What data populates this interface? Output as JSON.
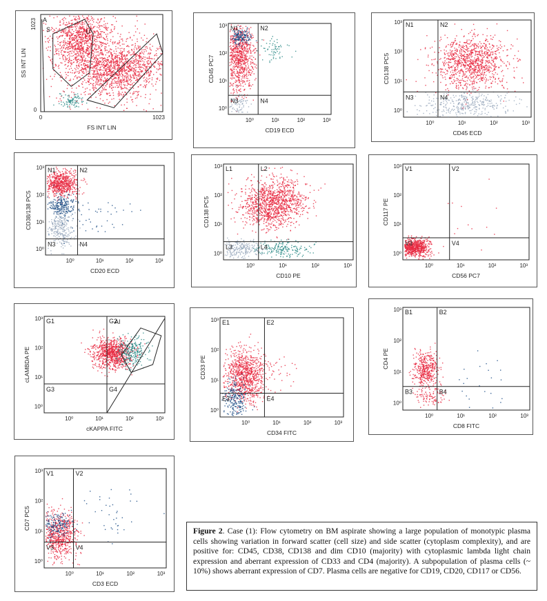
{
  "figure": {
    "caption_label": "Figure 2",
    "caption_text": ". Case (1): Flow cytometry on BM aspirate showing a large population of monotypic plasma cells showing variation in forward scatter (cell size) and side scatter (cytoplasm complexity), and are positive for: CD45, CD38, CD138 and dim CD10 (majority) with cytoplasmic lambda light chain expression and aberrant expression of CD33 and CD4 (majority).  A subpopulation of plasma cells (~ 10%) shows aberrant expression of CD7. Plasma cells are negative for CD19, CD20, CD117 or CD56."
  },
  "colors": {
    "plasma": "#e8283f",
    "gate_dark": "#1d4f86",
    "teal": "#2a8a86",
    "grey": "#9aa9bd",
    "axis": "#222"
  },
  "chart_data": [
    {
      "type": "scatter",
      "xlabel": "FS INT LIN",
      "ylabel": "SS INT LIN",
      "x_ticks": [
        "0",
        "1023"
      ],
      "y_ticks": [
        "1023",
        "0"
      ],
      "regions": [
        "A",
        "S",
        "U"
      ],
      "scale": "linear"
    },
    {
      "type": "scatter",
      "xlabel": "CD19 ECD",
      "ylabel": "CD45 PC7",
      "quadrants": [
        "N1",
        "N2",
        "N3",
        "N4"
      ],
      "x_ticks": [
        "10⁰",
        "10¹",
        "10²",
        "10³"
      ],
      "y_ticks": [
        "10³",
        "10²",
        "10¹",
        "10⁰"
      ],
      "scale": "log"
    },
    {
      "type": "scatter",
      "xlabel": "CD45 ECD",
      "ylabel": "CD138 PC5",
      "quadrants": [
        "N1",
        "N2",
        "N3",
        "N4"
      ],
      "x_ticks": [
        "10⁰",
        "10¹",
        "10²",
        "10³"
      ],
      "y_ticks": [
        "10³",
        "10²",
        "10¹",
        "10⁰"
      ],
      "scale": "log"
    },
    {
      "type": "scatter",
      "xlabel": "CD20 ECD",
      "ylabel": "CD38/138 PC5",
      "quadrants": [
        "N1",
        "N2",
        "N3",
        "N4"
      ],
      "x_ticks": [
        "10⁰",
        "10¹",
        "10²",
        "10³"
      ],
      "y_ticks": [
        "10³",
        "10²",
        "10¹",
        "10⁰"
      ],
      "scale": "log"
    },
    {
      "type": "scatter",
      "xlabel": "CD10 PE",
      "ylabel": "CD138 PC5",
      "quadrants": [
        "L1",
        "L2",
        "L3",
        "L4"
      ],
      "x_ticks": [
        "10⁰",
        "10¹",
        "10²",
        "10³"
      ],
      "y_ticks": [
        "10³",
        "10²",
        "10¹",
        "10⁰"
      ],
      "scale": "log"
    },
    {
      "type": "scatter",
      "xlabel": "CD56 PC7",
      "ylabel": "CD117 PE",
      "quadrants": [
        "V1",
        "V2",
        "V3",
        "V4"
      ],
      "x_ticks": [
        "10⁰",
        "10¹",
        "10²",
        "10³"
      ],
      "y_ticks": [
        "10³",
        "10²",
        "10¹",
        "10⁰"
      ],
      "scale": "log"
    },
    {
      "type": "scatter",
      "xlabel": "cKAPPA FITC",
      "ylabel": "cLAMBDA PE",
      "quadrants": [
        "G1",
        "G2",
        "G3",
        "G4"
      ],
      "gate": "AI",
      "x_ticks": [
        "10⁰",
        "10¹",
        "10²",
        "10³"
      ],
      "y_ticks": [
        "10³",
        "10²",
        "10¹",
        "10⁰"
      ],
      "scale": "log"
    },
    {
      "type": "scatter",
      "xlabel": "CD34 FITC",
      "ylabel": "CD33 PE",
      "quadrants": [
        "E1",
        "E2",
        "E3",
        "E4"
      ],
      "x_ticks": [
        "10⁰",
        "10¹",
        "10²",
        "10³"
      ],
      "y_ticks": [
        "10³",
        "10²",
        "10¹",
        "10⁰"
      ],
      "scale": "log"
    },
    {
      "type": "scatter",
      "xlabel": "CD8 FITC",
      "ylabel": "CD4 PE",
      "quadrants": [
        "B1",
        "B2",
        "B3",
        "B4"
      ],
      "x_ticks": [
        "10⁰",
        "10¹",
        "10²",
        "10³"
      ],
      "y_ticks": [
        "10³",
        "10²",
        "10¹",
        "10⁰"
      ],
      "scale": "log"
    },
    {
      "type": "scatter",
      "xlabel": "CD3 ECD",
      "ylabel": "CD7 PC5",
      "quadrants": [
        "V1",
        "V2",
        "V3",
        "V4"
      ],
      "x_ticks": [
        "10⁰",
        "10¹",
        "10²",
        "10³"
      ],
      "y_ticks": [
        "10³",
        "10²",
        "10¹",
        "10⁰"
      ],
      "scale": "log"
    }
  ]
}
